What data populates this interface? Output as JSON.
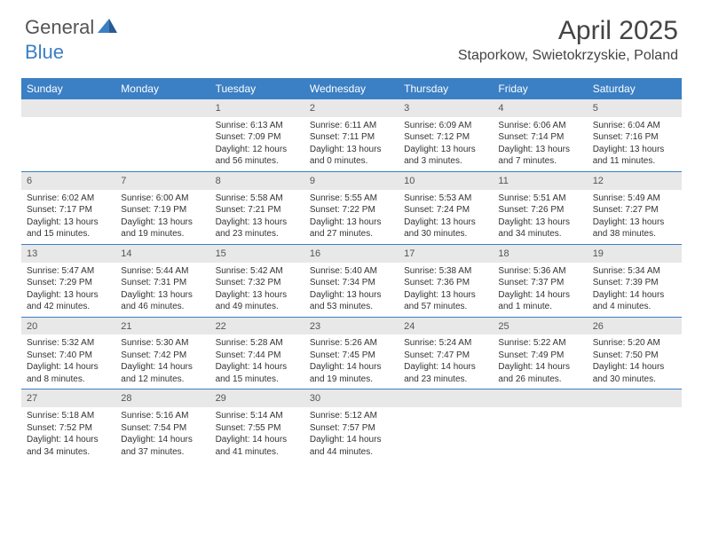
{
  "brand": {
    "part1": "General",
    "part2": "Blue"
  },
  "title": "April 2025",
  "location": "Staporkow, Swietokrzyskie, Poland",
  "colors": {
    "header_bg": "#3b7fc4",
    "header_text": "#ffffff",
    "daynum_bg": "#e8e8e8",
    "body_text": "#333333",
    "page_bg": "#ffffff"
  },
  "day_headers": [
    "Sunday",
    "Monday",
    "Tuesday",
    "Wednesday",
    "Thursday",
    "Friday",
    "Saturday"
  ],
  "weeks": [
    [
      {
        "empty": true
      },
      {
        "empty": true
      },
      {
        "day": "1",
        "sunrise": "Sunrise: 6:13 AM",
        "sunset": "Sunset: 7:09 PM",
        "daylight1": "Daylight: 12 hours",
        "daylight2": "and 56 minutes."
      },
      {
        "day": "2",
        "sunrise": "Sunrise: 6:11 AM",
        "sunset": "Sunset: 7:11 PM",
        "daylight1": "Daylight: 13 hours",
        "daylight2": "and 0 minutes."
      },
      {
        "day": "3",
        "sunrise": "Sunrise: 6:09 AM",
        "sunset": "Sunset: 7:12 PM",
        "daylight1": "Daylight: 13 hours",
        "daylight2": "and 3 minutes."
      },
      {
        "day": "4",
        "sunrise": "Sunrise: 6:06 AM",
        "sunset": "Sunset: 7:14 PM",
        "daylight1": "Daylight: 13 hours",
        "daylight2": "and 7 minutes."
      },
      {
        "day": "5",
        "sunrise": "Sunrise: 6:04 AM",
        "sunset": "Sunset: 7:16 PM",
        "daylight1": "Daylight: 13 hours",
        "daylight2": "and 11 minutes."
      }
    ],
    [
      {
        "day": "6",
        "sunrise": "Sunrise: 6:02 AM",
        "sunset": "Sunset: 7:17 PM",
        "daylight1": "Daylight: 13 hours",
        "daylight2": "and 15 minutes."
      },
      {
        "day": "7",
        "sunrise": "Sunrise: 6:00 AM",
        "sunset": "Sunset: 7:19 PM",
        "daylight1": "Daylight: 13 hours",
        "daylight2": "and 19 minutes."
      },
      {
        "day": "8",
        "sunrise": "Sunrise: 5:58 AM",
        "sunset": "Sunset: 7:21 PM",
        "daylight1": "Daylight: 13 hours",
        "daylight2": "and 23 minutes."
      },
      {
        "day": "9",
        "sunrise": "Sunrise: 5:55 AM",
        "sunset": "Sunset: 7:22 PM",
        "daylight1": "Daylight: 13 hours",
        "daylight2": "and 27 minutes."
      },
      {
        "day": "10",
        "sunrise": "Sunrise: 5:53 AM",
        "sunset": "Sunset: 7:24 PM",
        "daylight1": "Daylight: 13 hours",
        "daylight2": "and 30 minutes."
      },
      {
        "day": "11",
        "sunrise": "Sunrise: 5:51 AM",
        "sunset": "Sunset: 7:26 PM",
        "daylight1": "Daylight: 13 hours",
        "daylight2": "and 34 minutes."
      },
      {
        "day": "12",
        "sunrise": "Sunrise: 5:49 AM",
        "sunset": "Sunset: 7:27 PM",
        "daylight1": "Daylight: 13 hours",
        "daylight2": "and 38 minutes."
      }
    ],
    [
      {
        "day": "13",
        "sunrise": "Sunrise: 5:47 AM",
        "sunset": "Sunset: 7:29 PM",
        "daylight1": "Daylight: 13 hours",
        "daylight2": "and 42 minutes."
      },
      {
        "day": "14",
        "sunrise": "Sunrise: 5:44 AM",
        "sunset": "Sunset: 7:31 PM",
        "daylight1": "Daylight: 13 hours",
        "daylight2": "and 46 minutes."
      },
      {
        "day": "15",
        "sunrise": "Sunrise: 5:42 AM",
        "sunset": "Sunset: 7:32 PM",
        "daylight1": "Daylight: 13 hours",
        "daylight2": "and 49 minutes."
      },
      {
        "day": "16",
        "sunrise": "Sunrise: 5:40 AM",
        "sunset": "Sunset: 7:34 PM",
        "daylight1": "Daylight: 13 hours",
        "daylight2": "and 53 minutes."
      },
      {
        "day": "17",
        "sunrise": "Sunrise: 5:38 AM",
        "sunset": "Sunset: 7:36 PM",
        "daylight1": "Daylight: 13 hours",
        "daylight2": "and 57 minutes."
      },
      {
        "day": "18",
        "sunrise": "Sunrise: 5:36 AM",
        "sunset": "Sunset: 7:37 PM",
        "daylight1": "Daylight: 14 hours",
        "daylight2": "and 1 minute."
      },
      {
        "day": "19",
        "sunrise": "Sunrise: 5:34 AM",
        "sunset": "Sunset: 7:39 PM",
        "daylight1": "Daylight: 14 hours",
        "daylight2": "and 4 minutes."
      }
    ],
    [
      {
        "day": "20",
        "sunrise": "Sunrise: 5:32 AM",
        "sunset": "Sunset: 7:40 PM",
        "daylight1": "Daylight: 14 hours",
        "daylight2": "and 8 minutes."
      },
      {
        "day": "21",
        "sunrise": "Sunrise: 5:30 AM",
        "sunset": "Sunset: 7:42 PM",
        "daylight1": "Daylight: 14 hours",
        "daylight2": "and 12 minutes."
      },
      {
        "day": "22",
        "sunrise": "Sunrise: 5:28 AM",
        "sunset": "Sunset: 7:44 PM",
        "daylight1": "Daylight: 14 hours",
        "daylight2": "and 15 minutes."
      },
      {
        "day": "23",
        "sunrise": "Sunrise: 5:26 AM",
        "sunset": "Sunset: 7:45 PM",
        "daylight1": "Daylight: 14 hours",
        "daylight2": "and 19 minutes."
      },
      {
        "day": "24",
        "sunrise": "Sunrise: 5:24 AM",
        "sunset": "Sunset: 7:47 PM",
        "daylight1": "Daylight: 14 hours",
        "daylight2": "and 23 minutes."
      },
      {
        "day": "25",
        "sunrise": "Sunrise: 5:22 AM",
        "sunset": "Sunset: 7:49 PM",
        "daylight1": "Daylight: 14 hours",
        "daylight2": "and 26 minutes."
      },
      {
        "day": "26",
        "sunrise": "Sunrise: 5:20 AM",
        "sunset": "Sunset: 7:50 PM",
        "daylight1": "Daylight: 14 hours",
        "daylight2": "and 30 minutes."
      }
    ],
    [
      {
        "day": "27",
        "sunrise": "Sunrise: 5:18 AM",
        "sunset": "Sunset: 7:52 PM",
        "daylight1": "Daylight: 14 hours",
        "daylight2": "and 34 minutes."
      },
      {
        "day": "28",
        "sunrise": "Sunrise: 5:16 AM",
        "sunset": "Sunset: 7:54 PM",
        "daylight1": "Daylight: 14 hours",
        "daylight2": "and 37 minutes."
      },
      {
        "day": "29",
        "sunrise": "Sunrise: 5:14 AM",
        "sunset": "Sunset: 7:55 PM",
        "daylight1": "Daylight: 14 hours",
        "daylight2": "and 41 minutes."
      },
      {
        "day": "30",
        "sunrise": "Sunrise: 5:12 AM",
        "sunset": "Sunset: 7:57 PM",
        "daylight1": "Daylight: 14 hours",
        "daylight2": "and 44 minutes."
      },
      {
        "empty": true
      },
      {
        "empty": true
      },
      {
        "empty": true
      }
    ]
  ]
}
